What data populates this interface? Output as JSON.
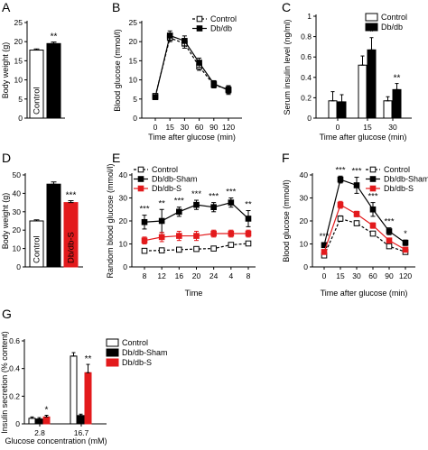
{
  "chart_data": [
    {
      "panel": "A",
      "type": "bar",
      "categories": [
        "Control",
        "Db/db"
      ],
      "values": [
        17.8,
        19.5
      ],
      "errors": [
        0.3,
        0.4
      ],
      "fills": [
        "#ffffff",
        "#000000"
      ],
      "ylabel": "Body weight (g)",
      "ylim": [
        0,
        25
      ],
      "yticks": [
        0,
        5,
        10,
        15,
        20,
        25
      ],
      "annotations": [
        {
          "cat": 1,
          "text": "**"
        }
      ]
    },
    {
      "panel": "B",
      "type": "line",
      "x": [
        0,
        15,
        30,
        60,
        90,
        120
      ],
      "xlabel": "Time after glucose (min)",
      "ylabel": "Blood glucose (mmol/l)",
      "ylim": [
        0,
        25
      ],
      "yticks": [
        0,
        5,
        10,
        15,
        20,
        25
      ],
      "legend": "top-right",
      "series": [
        {
          "name": "Control",
          "values": [
            5.8,
            21.0,
            19.5,
            13.5,
            8.7,
            7.5
          ],
          "errors": [
            0.4,
            1.0,
            1.2,
            1.0,
            0.8,
            1.0
          ],
          "marker": "square-open",
          "color": "#000000",
          "dashed": true
        },
        {
          "name": "Db/db",
          "values": [
            5.5,
            21.6,
            20.2,
            14.5,
            9.0,
            7.3
          ],
          "errors": [
            0.4,
            1.2,
            1.3,
            1.2,
            0.8,
            1.1
          ],
          "marker": "square-filled",
          "color": "#000000",
          "dashed": false
        }
      ]
    },
    {
      "panel": "C",
      "type": "bar",
      "categories": [
        "0",
        "15",
        "30"
      ],
      "xlabel": "Time after glucose (min)",
      "ylabel": "Serum insulin level (ng/ml)",
      "ylim": [
        0,
        1.0
      ],
      "yticks": [
        0.0,
        0.2,
        0.4,
        0.6,
        0.8,
        1.0
      ],
      "legend": "top-right",
      "series": [
        {
          "name": "Control",
          "values": [
            0.17,
            0.52,
            0.17
          ],
          "errors": [
            0.09,
            0.09,
            0.04
          ],
          "fill": "#ffffff"
        },
        {
          "name": "Db/db",
          "values": [
            0.16,
            0.67,
            0.28
          ],
          "errors": [
            0.07,
            0.12,
            0.06
          ],
          "fill": "#000000"
        }
      ],
      "annotations": [
        {
          "cat": 1,
          "series": 1,
          "text": "*"
        },
        {
          "cat": 2,
          "series": 1,
          "text": "**"
        }
      ]
    },
    {
      "panel": "D",
      "type": "bar",
      "categories": [
        "Control",
        "Db/db-Sham",
        "Db/db-S"
      ],
      "values": [
        25.0,
        45.0,
        35.0
      ],
      "errors": [
        0.6,
        1.2,
        1.0
      ],
      "fills": [
        "#ffffff",
        "#000000",
        "#e31a1c"
      ],
      "ylabel": "Body weight (g)",
      "ylim": [
        0,
        50
      ],
      "yticks": [
        0,
        10,
        20,
        30,
        40,
        50
      ],
      "annotations": [
        {
          "cat": 2,
          "text": "***"
        }
      ]
    },
    {
      "panel": "E",
      "type": "line",
      "x_labels": [
        "8",
        "12",
        "16",
        "20",
        "24",
        "4",
        "8"
      ],
      "xlabel": "Time",
      "ylabel": "Random blood glucose (mmol/l)",
      "ylim": [
        0,
        40
      ],
      "yticks": [
        0,
        10,
        20,
        30,
        40
      ],
      "legend": "top-left",
      "series": [
        {
          "name": "Control",
          "values": [
            7.0,
            7.2,
            7.5,
            7.8,
            8.0,
            9.6,
            10.2
          ],
          "errors": [
            0.5,
            0.5,
            0.5,
            0.6,
            0.6,
            0.8,
            0.8
          ],
          "marker": "square-open",
          "color": "#000000",
          "dashed": true
        },
        {
          "name": "Db/db-Sham",
          "values": [
            19.5,
            20.0,
            24.0,
            27.0,
            26.0,
            28.0,
            21.0
          ],
          "errors": [
            3.0,
            5.0,
            2.0,
            2.0,
            2.0,
            2.0,
            3.5
          ],
          "marker": "square-filled",
          "color": "#000000",
          "dashed": false
        },
        {
          "name": "Db/db-S",
          "values": [
            11.5,
            13.0,
            13.5,
            13.5,
            14.5,
            14.5,
            14.5
          ],
          "errors": [
            1.5,
            2.0,
            2.0,
            2.0,
            1.5,
            1.5,
            1.5
          ],
          "marker": "square-filled",
          "color": "#e31a1c",
          "dashed": false
        }
      ],
      "annotations": [
        {
          "index": 0,
          "text": "***"
        },
        {
          "index": 1,
          "text": "**"
        },
        {
          "index": 2,
          "text": "***"
        },
        {
          "index": 3,
          "text": "***"
        },
        {
          "index": 4,
          "text": "***"
        },
        {
          "index": 5,
          "text": "***"
        },
        {
          "index": 6,
          "text": "**"
        }
      ]
    },
    {
      "panel": "F",
      "type": "line",
      "x": [
        0,
        15,
        30,
        60,
        90,
        120
      ],
      "xlabel": "Time after glucose (min)",
      "ylabel": "Blood glucose (mmol/l)",
      "ylim": [
        0,
        40
      ],
      "yticks": [
        0,
        10,
        20,
        30,
        40
      ],
      "legend": "top-right",
      "series": [
        {
          "name": "Control",
          "values": [
            5.0,
            21.0,
            19.0,
            14.5,
            9.0,
            6.5
          ],
          "errors": [
            0.8,
            1.2,
            1.0,
            1.0,
            0.8,
            0.7
          ],
          "marker": "square-open",
          "color": "#000000",
          "dashed": true
        },
        {
          "name": "Db/db-Sham",
          "values": [
            9.5,
            38.0,
            35.5,
            25.0,
            15.5,
            10.5
          ],
          "errors": [
            1.0,
            1.5,
            3.5,
            3.0,
            1.5,
            1.2
          ],
          "marker": "square-filled",
          "color": "#000000",
          "dashed": false
        },
        {
          "name": "Db/db-S",
          "values": [
            6.5,
            27.0,
            23.0,
            18.0,
            11.5,
            7.5
          ],
          "errors": [
            0.8,
            1.5,
            1.2,
            1.2,
            1.0,
            0.8
          ],
          "marker": "square-filled",
          "color": "#e31a1c",
          "dashed": false
        }
      ],
      "annotations": [
        {
          "index": 0,
          "text": "***"
        },
        {
          "index": 1,
          "text": "***"
        },
        {
          "index": 2,
          "text": "***"
        },
        {
          "index": 3,
          "text": "***"
        },
        {
          "index": 4,
          "text": "***"
        },
        {
          "index": 5,
          "text": "*"
        }
      ]
    },
    {
      "panel": "G",
      "type": "bar",
      "categories": [
        "2.8",
        "16.7"
      ],
      "xlabel": "Glucose concentration (mM)",
      "ylabel": "Insulin secretion (% content)",
      "ylim": [
        0,
        0.6
      ],
      "yticks": [
        0.0,
        0.2,
        0.4,
        0.6
      ],
      "legend": "top-left",
      "series": [
        {
          "name": "Control",
          "values": [
            0.04,
            0.49
          ],
          "errors": [
            0.01,
            0.025
          ],
          "fill": "#ffffff"
        },
        {
          "name": "Db/db-Sham",
          "values": [
            0.035,
            0.06
          ],
          "errors": [
            0.01,
            0.01
          ],
          "fill": "#000000"
        },
        {
          "name": "Db/db-S",
          "values": [
            0.05,
            0.37
          ],
          "errors": [
            0.012,
            0.06
          ],
          "fill": "#e31a1c"
        }
      ],
      "annotations": [
        {
          "cat": 0,
          "series": 2,
          "text": "*"
        },
        {
          "cat": 1,
          "series": 2,
          "text": "**"
        }
      ]
    }
  ]
}
